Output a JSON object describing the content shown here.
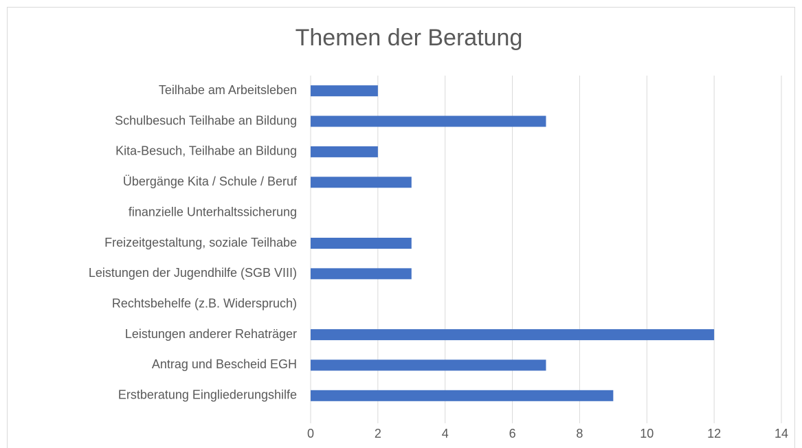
{
  "chart_data": {
    "type": "hbar",
    "title": "Themen der Beratung",
    "categories": [
      "Teilhabe am Arbeitsleben",
      "Schulbesuch Teilhabe an Bildung",
      "Kita-Besuch, Teilhabe an Bildung",
      "Übergänge Kita / Schule / Beruf",
      "finanzielle Unterhaltssicherung",
      "Freizeitgestaltung, soziale Teilhabe",
      "Leistungen der Jugendhilfe (SGB VIII)",
      "Rechtsbehelfe (z.B. Widerspruch)",
      "Leistungen anderer Rehaträger",
      "Antrag und Bescheid EGH",
      "Erstberatung Eingliederungshilfe"
    ],
    "values": [
      2,
      7,
      2,
      3,
      0,
      3,
      3,
      0,
      12,
      7,
      9
    ],
    "color": "#4472c4",
    "xlim": [
      0,
      14
    ],
    "xticks": [
      0,
      2,
      4,
      6,
      8,
      10,
      12,
      14
    ],
    "grid": true
  }
}
